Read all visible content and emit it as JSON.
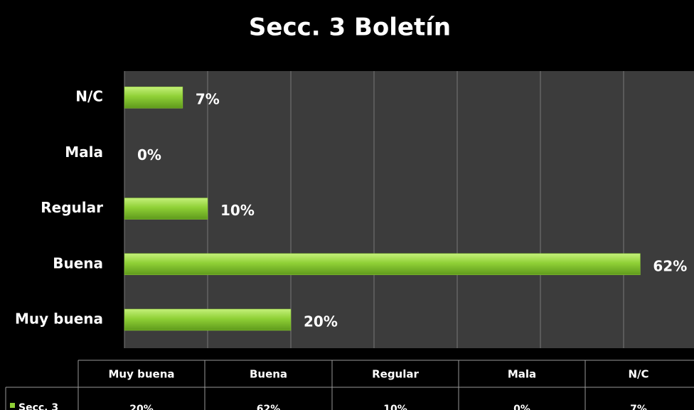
{
  "chart_data": {
    "type": "bar",
    "orientation": "horizontal",
    "title": "Secc. 3 Boletín",
    "categories": [
      "Muy buena",
      "Buena",
      "Regular",
      "Mala",
      "N/C"
    ],
    "series": [
      {
        "name": "Secc. 3",
        "color": "#8fd036",
        "values": [
          20,
          62,
          10,
          0,
          7
        ],
        "value_labels": [
          "20%",
          "62%",
          "10%",
          "0%",
          "7%"
        ]
      }
    ],
    "xlim": [
      0,
      70
    ],
    "xticks": [
      0,
      10,
      20,
      30,
      40,
      50,
      60,
      70
    ],
    "grid": true,
    "data_table": true
  }
}
